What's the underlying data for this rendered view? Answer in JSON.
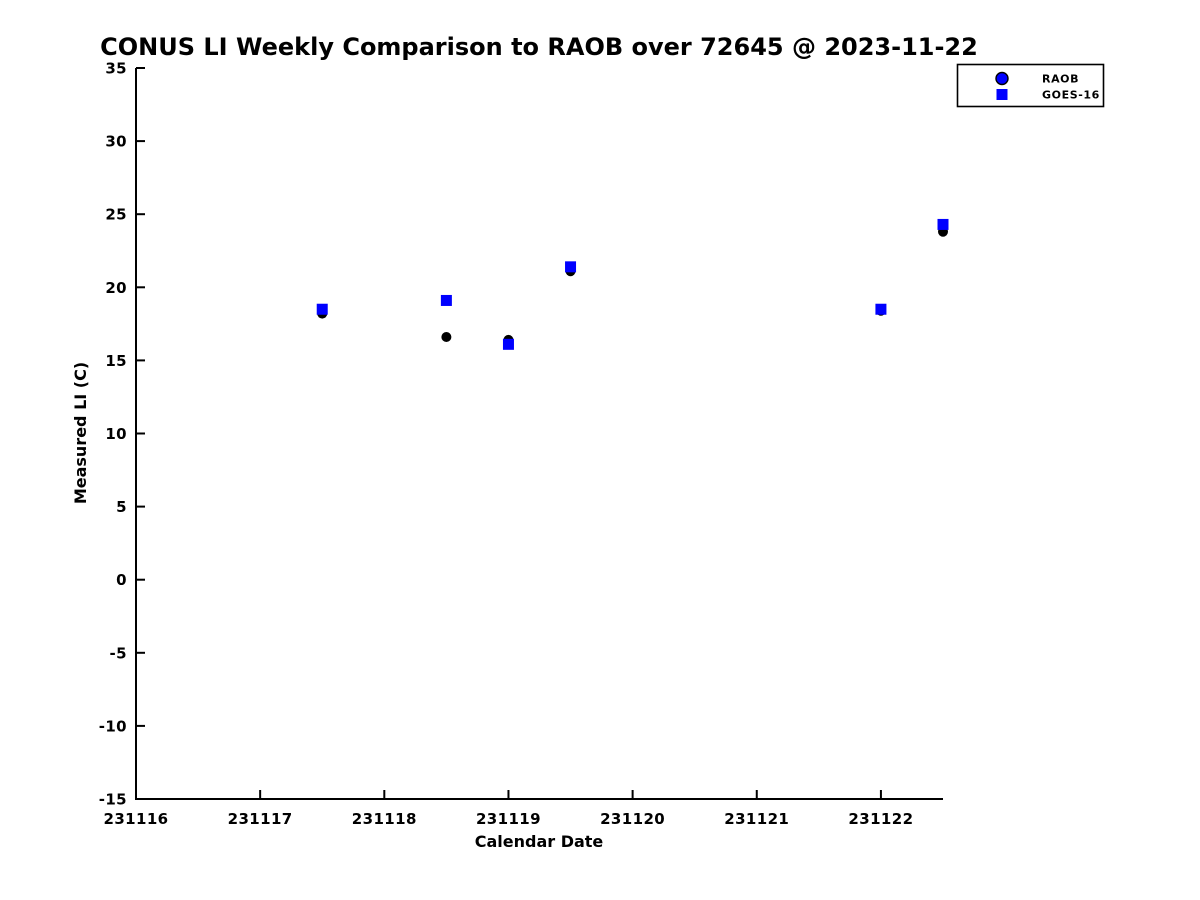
{
  "chart_data": {
    "type": "scatter",
    "title": "CONUS LI Weekly Comparison to RAOB over 72645 @ 2023-11-22",
    "xlabel": "Calendar Date",
    "ylabel": "Measured LI (C)",
    "xlim": [
      231116,
      231122.5
    ],
    "ylim": [
      -15,
      35
    ],
    "xticks": [
      231116,
      231117,
      231118,
      231119,
      231120,
      231121,
      231122
    ],
    "yticks": [
      35,
      30,
      25,
      20,
      15,
      10,
      5,
      0,
      -5,
      -10,
      -15
    ],
    "grid": false,
    "legend_position": "top-right",
    "axis_color": "#000000",
    "background_color": "#ffffff",
    "series": [
      {
        "name": "RAOB",
        "marker": "circle",
        "plot_color": "#000000",
        "legend_fill": "#0000ff",
        "legend_edge": "#000000",
        "x": [
          231117.5,
          231118.5,
          231119.0,
          231119.5,
          231122.0,
          231122.5
        ],
        "y": [
          18.2,
          16.6,
          16.4,
          21.1,
          18.4,
          23.8
        ]
      },
      {
        "name": "GOES-16",
        "marker": "square",
        "plot_color": "#0000ff",
        "legend_fill": "#0000ff",
        "legend_edge": "#0000ff",
        "x": [
          231117.5,
          231118.5,
          231119.0,
          231119.5,
          231122.0,
          231122.5
        ],
        "y": [
          18.5,
          19.1,
          16.1,
          21.4,
          18.5,
          24.3
        ]
      }
    ]
  }
}
